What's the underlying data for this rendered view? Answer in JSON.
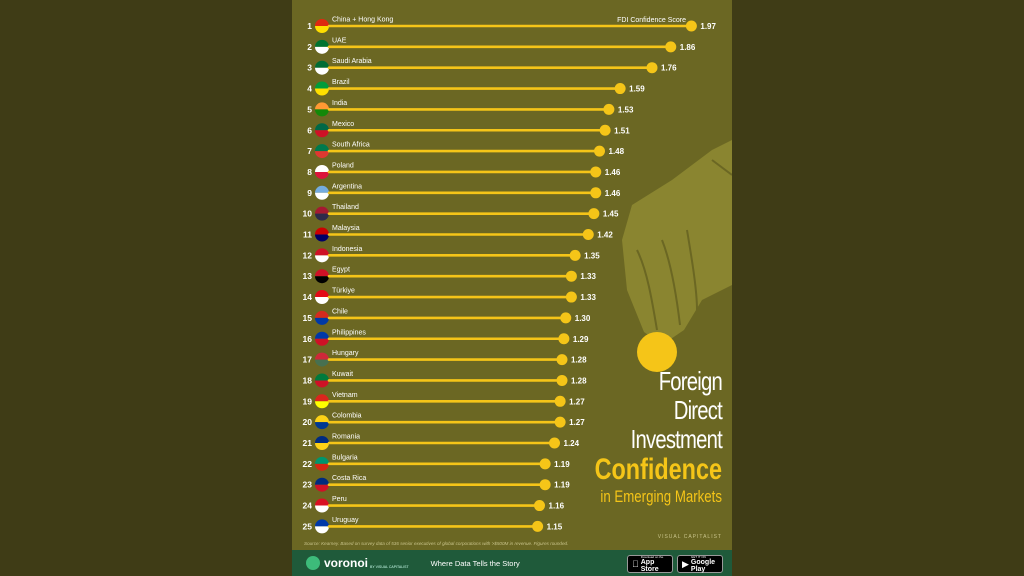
{
  "title": {
    "line1": "Foreign",
    "line2": "Direct",
    "line3": "Investment",
    "line4": "Confidence",
    "line5": "in Emerging Markets"
  },
  "legend_label": "FDI Confidence Score",
  "source_text": "Source: Kearney. Based on survey data of 536 senior executives of global corporations with >$500M in revenue. Figures rounded.",
  "brand_mark": "VISUAL CAPITALIST",
  "footer": {
    "logo": "voronoi",
    "logo_sub": "BY VISUAL CAPITALIST",
    "tagline": "Where Data Tells the Story",
    "app_store_small": "Download on the",
    "app_store": "App Store",
    "google_play_small": "GET IT ON",
    "google_play": "Google Play"
  },
  "colors": {
    "background": "#3f3c16",
    "poster": "#6b6723",
    "accent": "#f5c518",
    "footer": "#1f5a3a"
  },
  "chart_data": {
    "type": "bar",
    "title": "Foreign Direct Investment Confidence in Emerging Markets",
    "xlabel": "FDI Confidence Score",
    "xlim": [
      0,
      2
    ],
    "ranks": [
      1,
      2,
      3,
      4,
      5,
      6,
      7,
      8,
      9,
      10,
      11,
      12,
      13,
      14,
      15,
      16,
      17,
      18,
      19,
      20,
      21,
      22,
      23,
      24,
      25
    ],
    "categories": [
      "China + Hong Kong",
      "UAE",
      "Saudi Arabia",
      "Brazil",
      "India",
      "Mexico",
      "South Africa",
      "Poland",
      "Argentina",
      "Thailand",
      "Malaysia",
      "Indonesia",
      "Egypt",
      "Türkiye",
      "Chile",
      "Philippines",
      "Hungary",
      "Kuwait",
      "Vietnam",
      "Colombia",
      "Romania",
      "Bulgaria",
      "Costa Rica",
      "Peru",
      "Uruguay"
    ],
    "values": [
      1.97,
      1.86,
      1.76,
      1.59,
      1.53,
      1.51,
      1.48,
      1.46,
      1.46,
      1.45,
      1.42,
      1.35,
      1.33,
      1.33,
      1.3,
      1.29,
      1.28,
      1.28,
      1.27,
      1.27,
      1.24,
      1.19,
      1.19,
      1.16,
      1.15
    ],
    "value_labels": [
      "1.97",
      "1.86",
      "1.76",
      "1.59",
      "1.53",
      "1.51",
      "1.48",
      "1.46",
      "1.46",
      "1.45",
      "1.42",
      "1.35",
      "1.33",
      "1.33",
      "1.30",
      "1.29",
      "1.28",
      "1.28",
      "1.27",
      "1.27",
      "1.24",
      "1.19",
      "1.19",
      "1.16",
      "1.15"
    ],
    "flag_colors": [
      [
        "#de2910",
        "#ffde00"
      ],
      [
        "#00732f",
        "#ffffff"
      ],
      [
        "#006c35",
        "#ffffff"
      ],
      [
        "#009c3b",
        "#ffdf00"
      ],
      [
        "#ff9933",
        "#138808"
      ],
      [
        "#006847",
        "#ce1126"
      ],
      [
        "#007a4d",
        "#de3831"
      ],
      [
        "#ffffff",
        "#dc143c"
      ],
      [
        "#74acdf",
        "#ffffff"
      ],
      [
        "#a51931",
        "#2d2a4a"
      ],
      [
        "#cc0001",
        "#010066"
      ],
      [
        "#ce1126",
        "#ffffff"
      ],
      [
        "#ce1126",
        "#000000"
      ],
      [
        "#e30a17",
        "#ffffff"
      ],
      [
        "#d52b1e",
        "#0039a6"
      ],
      [
        "#0038a8",
        "#ce1126"
      ],
      [
        "#ce2939",
        "#477050"
      ],
      [
        "#007a3d",
        "#ce1126"
      ],
      [
        "#da251d",
        "#ffff00"
      ],
      [
        "#fcd116",
        "#003893"
      ],
      [
        "#002b7f",
        "#fcd116"
      ],
      [
        "#00966e",
        "#d62612"
      ],
      [
        "#002b7f",
        "#ce1126"
      ],
      [
        "#d91023",
        "#ffffff"
      ],
      [
        "#0038a8",
        "#ffffff"
      ]
    ]
  }
}
